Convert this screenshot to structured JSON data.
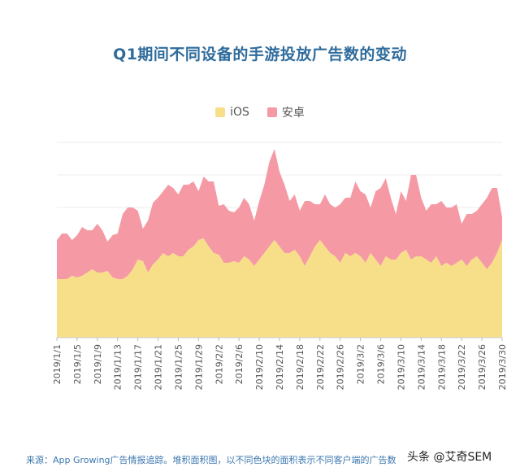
{
  "title": "Q1期间不同设备的手游投放广告数的变动",
  "legend": [
    {
      "label": "iOS",
      "color": "#f7df8a"
    },
    {
      "label": "安卓",
      "color": "#f59aa5"
    }
  ],
  "footer": "来源：App Growing广告情报追踪。堆积面积图，以不同色块的面积表示不同客户端的广告数",
  "watermark": "头条 @艾奇SEM",
  "chart_data": {
    "type": "area",
    "stacked": true,
    "grid": true,
    "legend_position": "top",
    "tick_labels": [
      "2019/1/1",
      "2019/1/5",
      "2019/1/9",
      "2019/1/13",
      "2019/1/17",
      "2019/1/21",
      "2019/1/25",
      "2019/1/29",
      "2019/2/2",
      "2019/2/6",
      "2019/2/10",
      "2019/2/14",
      "2019/2/18",
      "2019/2/22",
      "2019/2/26",
      "2019/3/2",
      "2019/3/6",
      "2019/3/10",
      "2019/3/14",
      "2019/3/18",
      "2019/3/22",
      "2019/3/26",
      "2019/3/30"
    ],
    "ylim": [
      0,
      6
    ],
    "x_start": "2019/1/1",
    "series": [
      {
        "name": "iOS",
        "values": [
          1.8,
          1.8,
          1.8,
          1.9,
          1.85,
          1.9,
          2.0,
          2.1,
          2.0,
          2.0,
          2.05,
          1.85,
          1.8,
          1.8,
          1.9,
          2.1,
          2.4,
          2.35,
          2.0,
          2.25,
          2.4,
          2.6,
          2.5,
          2.6,
          2.5,
          2.5,
          2.7,
          2.8,
          3.0,
          3.05,
          2.8,
          2.6,
          2.55,
          2.3,
          2.3,
          2.35,
          2.3,
          2.5,
          2.4,
          2.2,
          2.4,
          2.6,
          2.8,
          3.0,
          2.8,
          2.6,
          2.6,
          2.7,
          2.5,
          2.2,
          2.5,
          2.8,
          3.0,
          2.8,
          2.6,
          2.5,
          2.3,
          2.6,
          2.5,
          2.6,
          2.5,
          2.3,
          2.6,
          2.4,
          2.2,
          2.5,
          2.4,
          2.4,
          2.6,
          2.7,
          2.4,
          2.5,
          2.5,
          2.4,
          2.3,
          2.5,
          2.2,
          2.3,
          2.2,
          2.3,
          2.4,
          2.2,
          2.4,
          2.5,
          2.3,
          2.1,
          2.3,
          2.6,
          3.0
        ]
      },
      {
        "name": "安卓",
        "values": [
          1.2,
          1.4,
          1.4,
          1.1,
          1.3,
          1.5,
          1.3,
          1.2,
          1.5,
          1.3,
          0.9,
          1.3,
          1.4,
          2.0,
          2.1,
          1.9,
          1.5,
          1.0,
          1.6,
          1.9,
          1.9,
          1.9,
          2.2,
          2.0,
          1.9,
          2.2,
          2.0,
          2.0,
          1.5,
          1.9,
          2.0,
          2.2,
          1.5,
          1.8,
          1.6,
          1.5,
          1.7,
          1.8,
          1.7,
          1.4,
          1.8,
          2.1,
          2.6,
          2.8,
          2.3,
          2.1,
          1.6,
          1.7,
          1.4,
          2.0,
          1.7,
          1.3,
          1.1,
          1.6,
          1.5,
          1.5,
          1.8,
          1.7,
          1.8,
          2.2,
          2.0,
          2.1,
          1.4,
          2.1,
          2.4,
          2.4,
          1.9,
          1.4,
          1.9,
          1.5,
          2.6,
          2.5,
          1.8,
          1.5,
          1.8,
          1.6,
          2.0,
          1.7,
          1.8,
          1.8,
          1.1,
          1.6,
          1.4,
          1.4,
          1.8,
          2.2,
          2.3,
          2.0,
          0.7
        ]
      }
    ]
  }
}
